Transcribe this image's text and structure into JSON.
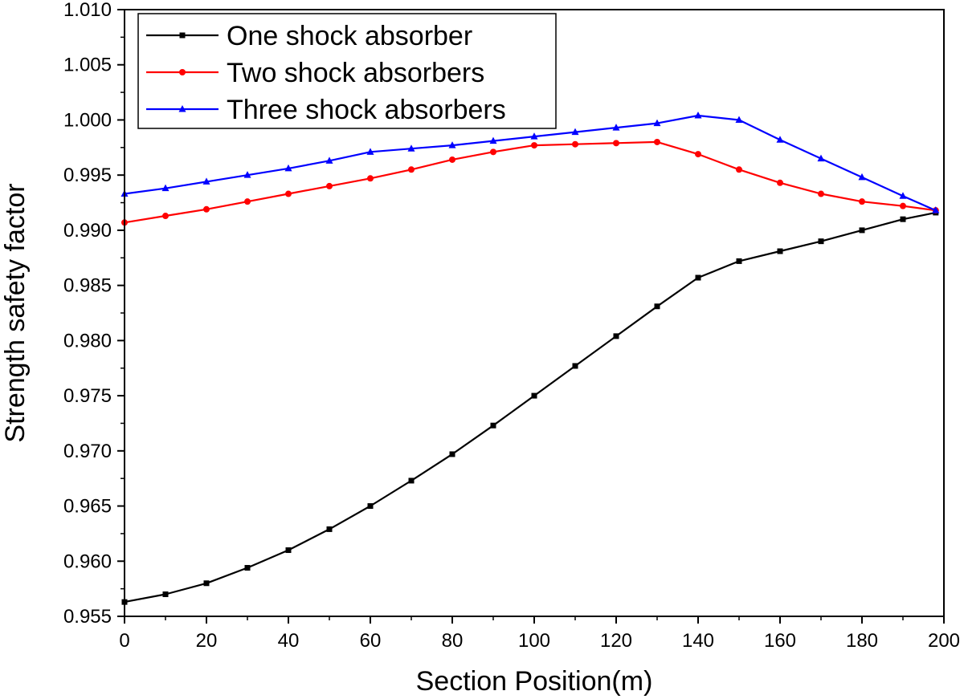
{
  "chart_data": {
    "type": "line",
    "xlabel": "Section Position(m)",
    "ylabel": "Strength safety factor",
    "xlim": [
      0,
      200
    ],
    "ylim": [
      0.955,
      1.01
    ],
    "x_ticks": [
      "0",
      "20",
      "40",
      "60",
      "80",
      "100",
      "120",
      "140",
      "160",
      "180",
      "200"
    ],
    "y_ticks": [
      "0.955",
      "0.960",
      "0.965",
      "0.970",
      "0.975",
      "0.980",
      "0.985",
      "0.990",
      "0.995",
      "1.000",
      "1.005",
      "1.010"
    ],
    "grid": false,
    "legend_position": "top-left",
    "series": [
      {
        "name": "One shock absorber",
        "color": "#000000",
        "marker": "square",
        "x": [
          0,
          10,
          20,
          30,
          40,
          50,
          60,
          70,
          80,
          90,
          100,
          110,
          120,
          130,
          140,
          150,
          160,
          170,
          180,
          190,
          198
        ],
        "y": [
          0.9563,
          0.957,
          0.958,
          0.9594,
          0.961,
          0.9629,
          0.965,
          0.9673,
          0.9697,
          0.9723,
          0.975,
          0.9777,
          0.9804,
          0.9831,
          0.9857,
          0.9872,
          0.9881,
          0.989,
          0.99,
          0.991,
          0.9916
        ]
      },
      {
        "name": "Two shock absorbers",
        "color": "#ff0000",
        "marker": "circle",
        "x": [
          0,
          10,
          20,
          30,
          40,
          50,
          60,
          70,
          80,
          90,
          100,
          110,
          120,
          130,
          140,
          150,
          160,
          170,
          180,
          190,
          198
        ],
        "y": [
          0.9907,
          0.9913,
          0.9919,
          0.9926,
          0.9933,
          0.994,
          0.9947,
          0.9955,
          0.9964,
          0.9971,
          0.9977,
          0.9978,
          0.9979,
          0.998,
          0.9969,
          0.9955,
          0.9943,
          0.9933,
          0.9926,
          0.9922,
          0.9918
        ]
      },
      {
        "name": "Three shock absorbers",
        "color": "#0000ff",
        "marker": "triangle",
        "x": [
          0,
          10,
          20,
          30,
          40,
          50,
          60,
          70,
          80,
          90,
          100,
          110,
          120,
          130,
          140,
          150,
          160,
          170,
          180,
          190,
          198
        ],
        "y": [
          0.9933,
          0.9938,
          0.9944,
          0.995,
          0.9956,
          0.9963,
          0.9971,
          0.9974,
          0.9977,
          0.9981,
          0.9985,
          0.9989,
          0.9993,
          0.9997,
          1.0004,
          1.0,
          0.9982,
          0.9965,
          0.9948,
          0.9931,
          0.9918
        ]
      }
    ]
  }
}
